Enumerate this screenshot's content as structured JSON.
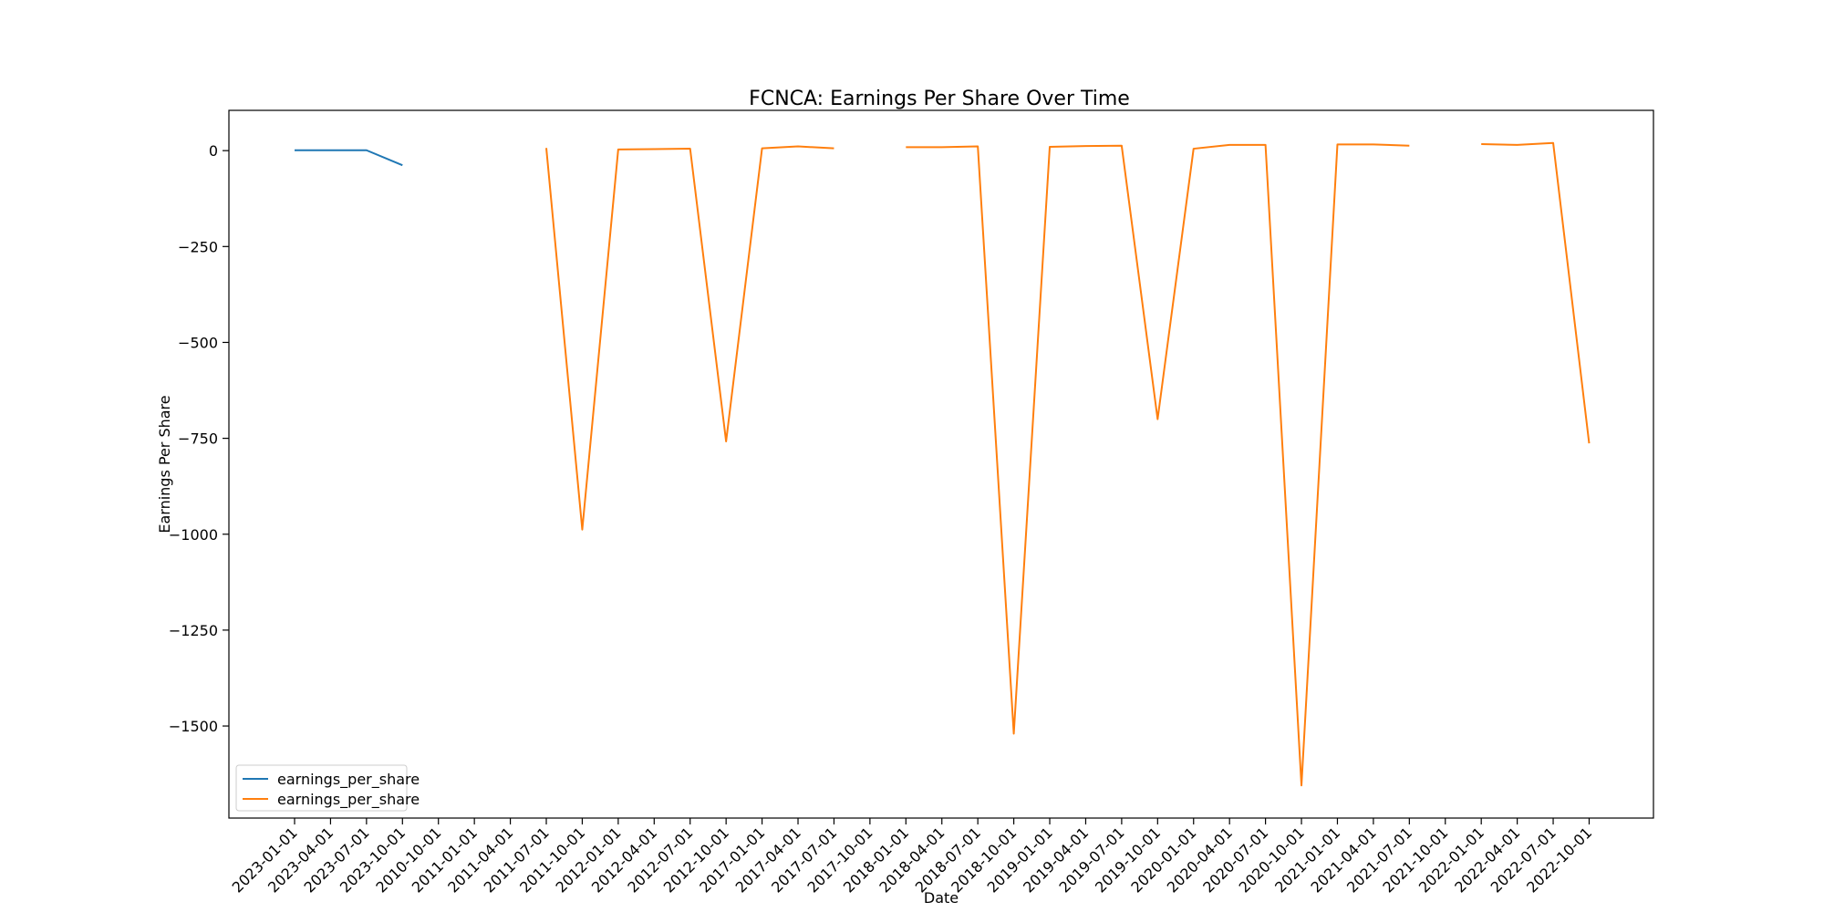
{
  "chart_data": {
    "type": "line",
    "title": "FCNCA: Earnings Per Share Over Time",
    "xlabel": "Date",
    "ylabel": "Earnings Per Share",
    "ylim": [
      -1740,
      105
    ],
    "yticks": [
      0,
      -250,
      -500,
      -750,
      -1000,
      -1250,
      -1500
    ],
    "ytick_labels": [
      "0",
      "−250",
      "−500",
      "−750",
      "−1000",
      "−1250",
      "−1500"
    ],
    "categories": [
      "2023-01-01",
      "2023-04-01",
      "2023-07-01",
      "2023-10-01",
      "2010-10-01",
      "2011-01-01",
      "2011-04-01",
      "2011-07-01",
      "2011-10-01",
      "2012-01-01",
      "2012-04-01",
      "2012-07-01",
      "2012-10-01",
      "2017-01-01",
      "2017-04-01",
      "2017-07-01",
      "2017-10-01",
      "2018-01-01",
      "2018-04-01",
      "2018-07-01",
      "2018-10-01",
      "2019-01-01",
      "2019-04-01",
      "2019-07-01",
      "2019-10-01",
      "2020-01-01",
      "2020-04-01",
      "2020-07-01",
      "2020-10-01",
      "2021-01-01",
      "2021-04-01",
      "2021-07-01",
      "2021-10-01",
      "2022-01-01",
      "2022-04-01",
      "2022-07-01",
      "2022-10-01"
    ],
    "grid": false,
    "legend_position": "lower-left",
    "series": [
      {
        "name": "earnings_per_share",
        "color": "#1f77b4",
        "values": [
          1,
          1,
          1,
          -38,
          null,
          null,
          null,
          null,
          null,
          null,
          null,
          null,
          null,
          null,
          null,
          null,
          null,
          null,
          null,
          null,
          null,
          null,
          null,
          null,
          null,
          null,
          null,
          null,
          null,
          null,
          null,
          null,
          null,
          null,
          null,
          null,
          null
        ]
      },
      {
        "name": "earnings_per_share",
        "color": "#ff7f0e",
        "values": [
          null,
          null,
          null,
          null,
          null,
          null,
          null,
          7,
          -988,
          3,
          4,
          5,
          -758,
          6,
          11,
          6,
          null,
          9,
          9,
          11,
          -1520,
          10,
          12,
          13,
          -700,
          5,
          15,
          15,
          -1655,
          16,
          16,
          13,
          null,
          17,
          15,
          20,
          -763
        ]
      }
    ]
  }
}
